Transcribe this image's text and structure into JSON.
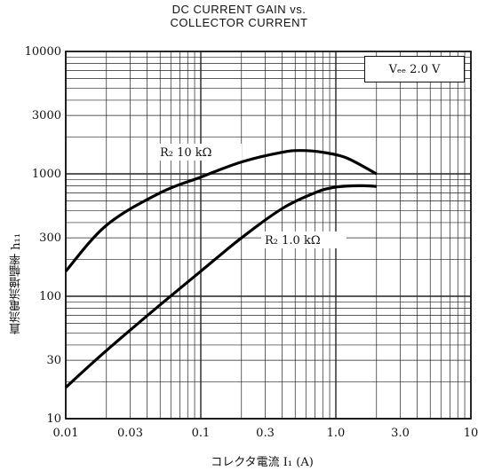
{
  "chart_data": {
    "type": "line",
    "title": [
      "DC CURRENT GAIN vs.",
      "COLLECTOR CURRENT"
    ],
    "xlabel": "コレクタ電流 I₁ (A)",
    "ylabel": "直流電流増幅率 h₁₁",
    "xscale": "log",
    "yscale": "log",
    "xlim": [
      0.01,
      10
    ],
    "ylim": [
      10,
      10000
    ],
    "grid": true,
    "x_ticks": [
      0.01,
      0.03,
      0.1,
      0.3,
      1.0,
      3.0,
      10
    ],
    "x_tick_labels": [
      "0.01",
      "0.03",
      "0.1",
      "0.3",
      "1.0",
      "3.0",
      "10"
    ],
    "y_ticks": [
      10,
      30,
      100,
      300,
      1000,
      3000,
      10000
    ],
    "y_tick_labels": [
      "10",
      "30",
      "100",
      "300",
      "1000",
      "3000",
      "10000"
    ],
    "condition": "Vₑₑ 2.0 V",
    "series": [
      {
        "name": "R₂ 10 kΩ",
        "x": [
          0.01,
          0.02,
          0.05,
          0.1,
          0.2,
          0.4,
          0.55,
          0.8,
          1.2,
          2.0
        ],
        "y": [
          160,
          380,
          700,
          940,
          1250,
          1500,
          1550,
          1500,
          1350,
          1000
        ]
      },
      {
        "name": "R₂ 1.0 kΩ",
        "x": [
          0.01,
          0.02,
          0.05,
          0.1,
          0.2,
          0.4,
          0.7,
          1.0,
          1.5,
          2.0
        ],
        "y": [
          18,
          36,
          85,
          160,
          300,
          520,
          700,
          780,
          800,
          790
        ]
      }
    ]
  }
}
